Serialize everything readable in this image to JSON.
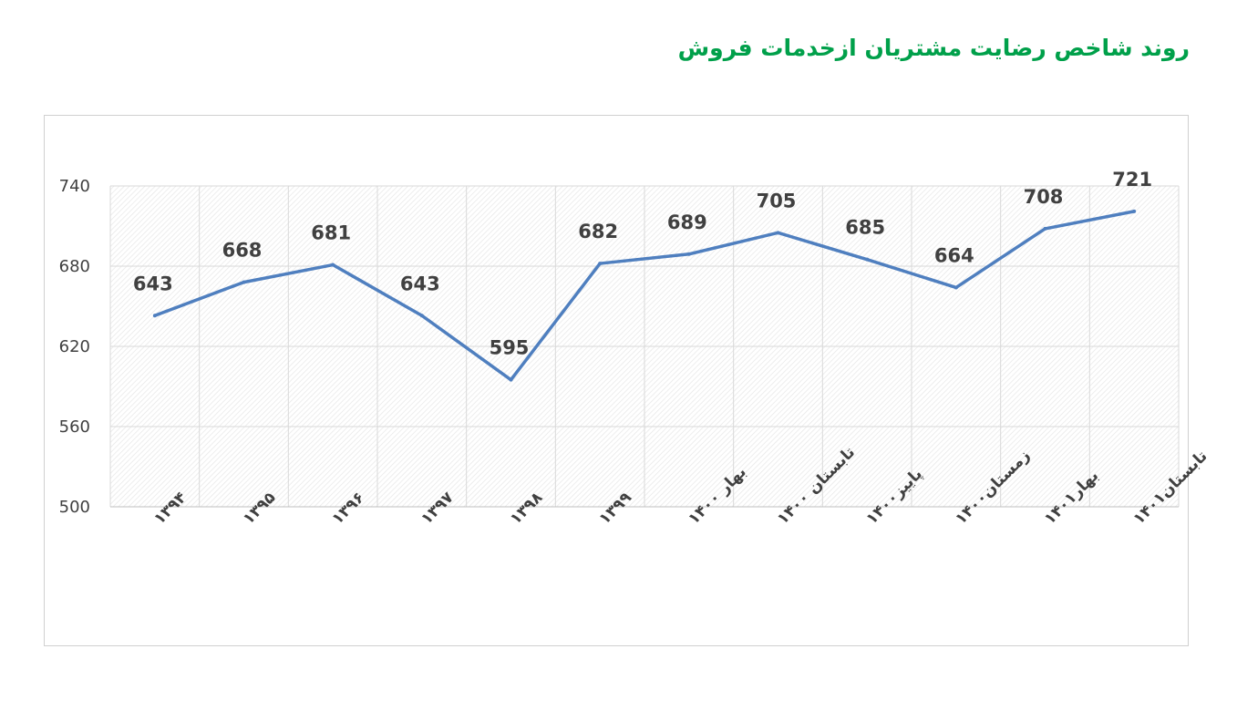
{
  "chart_data": {
    "type": "line",
    "title": "روند شاخص رضایت مشتریان ازخدمات فروش",
    "xlabel": "",
    "ylabel": "",
    "categories": [
      "۱۳۹۴",
      "۱۳۹۵",
      "۱۳۹۶",
      "۱۳۹۷",
      "۱۳۹۸",
      "۱۳۹۹",
      "بهار ۱۴۰۰",
      "تابستان ۱۴۰۰",
      "پاییز۱۴۰۰",
      "زمستان۱۴۰۰",
      "بهار۱۴۰۱",
      "تابستان۱۴۰۱"
    ],
    "series": [
      {
        "values": [
          643,
          668,
          681,
          643,
          595,
          682,
          689,
          705,
          685,
          664,
          708,
          721
        ],
        "color": "#4f7fbf"
      }
    ],
    "data_labels": [
      "643",
      "668",
      "681",
      "643",
      "595",
      "682",
      "689",
      "705",
      "685",
      "664",
      "708",
      "721"
    ],
    "ylim": [
      500,
      740
    ],
    "yticks": [
      500,
      560,
      620,
      680,
      740
    ],
    "ytick_labels": [
      "500",
      "560",
      "620",
      "680",
      "740"
    ],
    "grid": true,
    "legend": "none",
    "title_color": "#00a04a"
  }
}
